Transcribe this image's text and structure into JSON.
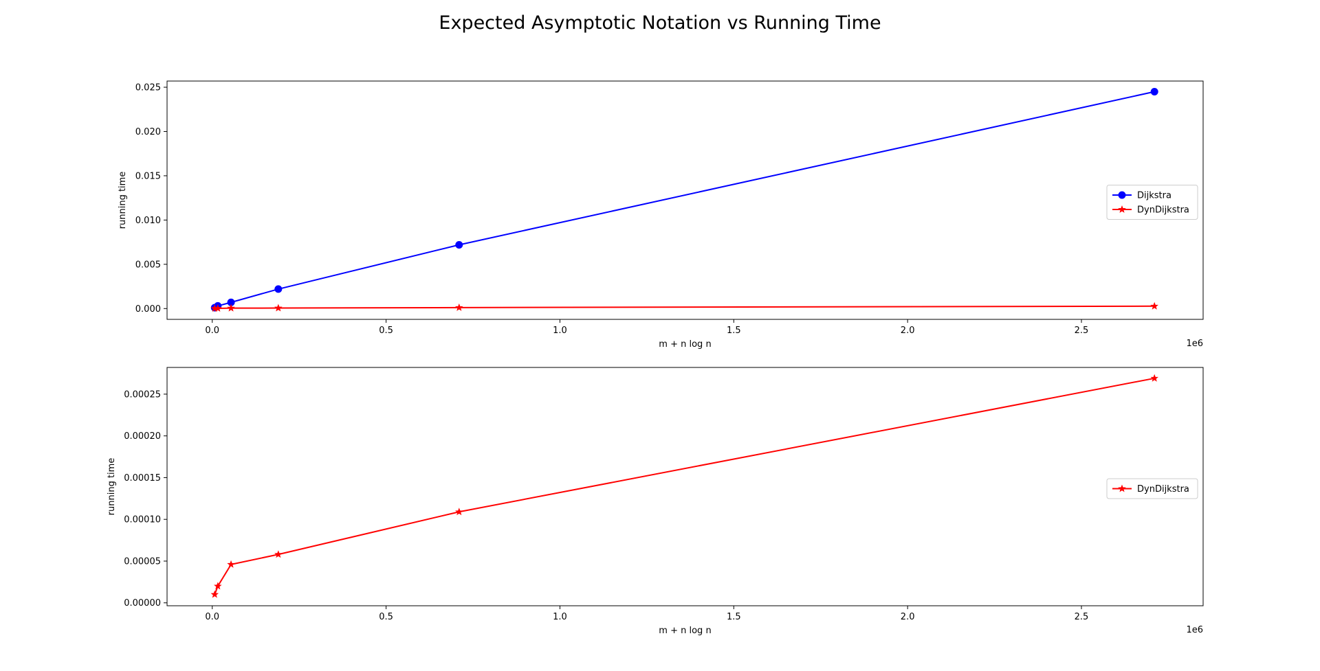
{
  "figure": {
    "title": "Expected Asymptotic Notation vs Running Time"
  },
  "chart_data": [
    {
      "type": "line",
      "xlabel": "m + n log n",
      "ylabel": "running time",
      "x_offset_text": "1e6",
      "xlim": [
        -0.13,
        2.85
      ],
      "ylim": [
        -0.00122,
        0.0257
      ],
      "xticks": [
        0.0,
        0.5,
        1.0,
        1.5,
        2.0,
        2.5
      ],
      "xtick_labels": [
        "0.0",
        "0.5",
        "1.0",
        "1.5",
        "2.0",
        "2.5"
      ],
      "yticks": [
        0.0,
        0.005,
        0.01,
        0.015,
        0.02,
        0.025
      ],
      "ytick_labels": [
        "0.000",
        "0.005",
        "0.010",
        "0.015",
        "0.020",
        "0.025"
      ],
      "grid": false,
      "legend_position": "center-right",
      "series": [
        {
          "name": "Dijkstra",
          "color": "#0000ff",
          "marker": "circle",
          "x": [
            0.007,
            0.016,
            0.054,
            0.19,
            0.71,
            2.71
          ],
          "y": [
            0.0001,
            0.0003,
            0.0007,
            0.0022,
            0.0072,
            0.0245
          ]
        },
        {
          "name": "DynDijkstra",
          "color": "#ff0000",
          "marker": "star",
          "x": [
            0.007,
            0.016,
            0.054,
            0.19,
            0.71,
            2.71
          ],
          "y": [
            1e-05,
            2e-05,
            4.6e-05,
            5.8e-05,
            0.000109,
            0.000269
          ]
        }
      ]
    },
    {
      "type": "line",
      "xlabel": "m + n log n",
      "ylabel": "running time",
      "x_offset_text": "1e6",
      "xlim": [
        -0.13,
        2.85
      ],
      "ylim": [
        -3.5e-06,
        0.000282
      ],
      "xticks": [
        0.0,
        0.5,
        1.0,
        1.5,
        2.0,
        2.5
      ],
      "xtick_labels": [
        "0.0",
        "0.5",
        "1.0",
        "1.5",
        "2.0",
        "2.5"
      ],
      "yticks": [
        0.0,
        5e-05,
        0.0001,
        0.00015,
        0.0002,
        0.00025
      ],
      "ytick_labels": [
        "0.00000",
        "0.00005",
        "0.00010",
        "0.00015",
        "0.00020",
        "0.00025"
      ],
      "grid": false,
      "legend_position": "center-right",
      "series": [
        {
          "name": "DynDijkstra",
          "color": "#ff0000",
          "marker": "star",
          "x": [
            0.007,
            0.016,
            0.054,
            0.19,
            0.71,
            2.71
          ],
          "y": [
            1e-05,
            2e-05,
            4.6e-05,
            5.8e-05,
            0.000109,
            0.000269
          ]
        }
      ]
    }
  ]
}
